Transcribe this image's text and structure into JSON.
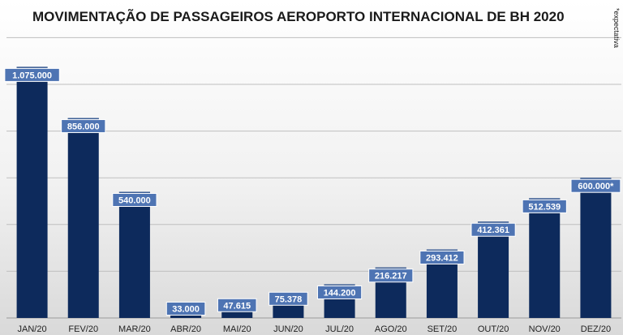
{
  "chart_data": {
    "type": "bar",
    "title": "MOVIMENTAÇÃO DE PASSAGEIROS AEROPORTO INTERNACIONAL DE BH 2020",
    "note": "*expectativa",
    "categories": [
      "JAN/20",
      "FEV/20",
      "MAR/20",
      "ABR/20",
      "MAI/20",
      "JUN/20",
      "JUL/20",
      "AGO/20",
      "SET/20",
      "OUT/20",
      "NOV/20",
      "DEZ/20"
    ],
    "values": [
      1075000,
      856000,
      540000,
      33000,
      47615,
      75378,
      144200,
      216217,
      293412,
      412361,
      512539,
      600000
    ],
    "labels": [
      "1.075.000",
      "856.000",
      "540.000",
      "33.000",
      "47.615",
      "75.378",
      "144.200",
      "216.217",
      "293.412",
      "412.361",
      "512.539",
      "600.000*"
    ],
    "ylim": [
      0,
      1200000
    ],
    "grid": true,
    "legend": "none",
    "xlabel": "",
    "ylabel": "",
    "colors": {
      "bar": "#0d2a5c",
      "bar_top": "#3d5f96",
      "label_bg": "#4e74b3",
      "label_border": "#ffffff",
      "grid": "#bfbfbf"
    }
  }
}
